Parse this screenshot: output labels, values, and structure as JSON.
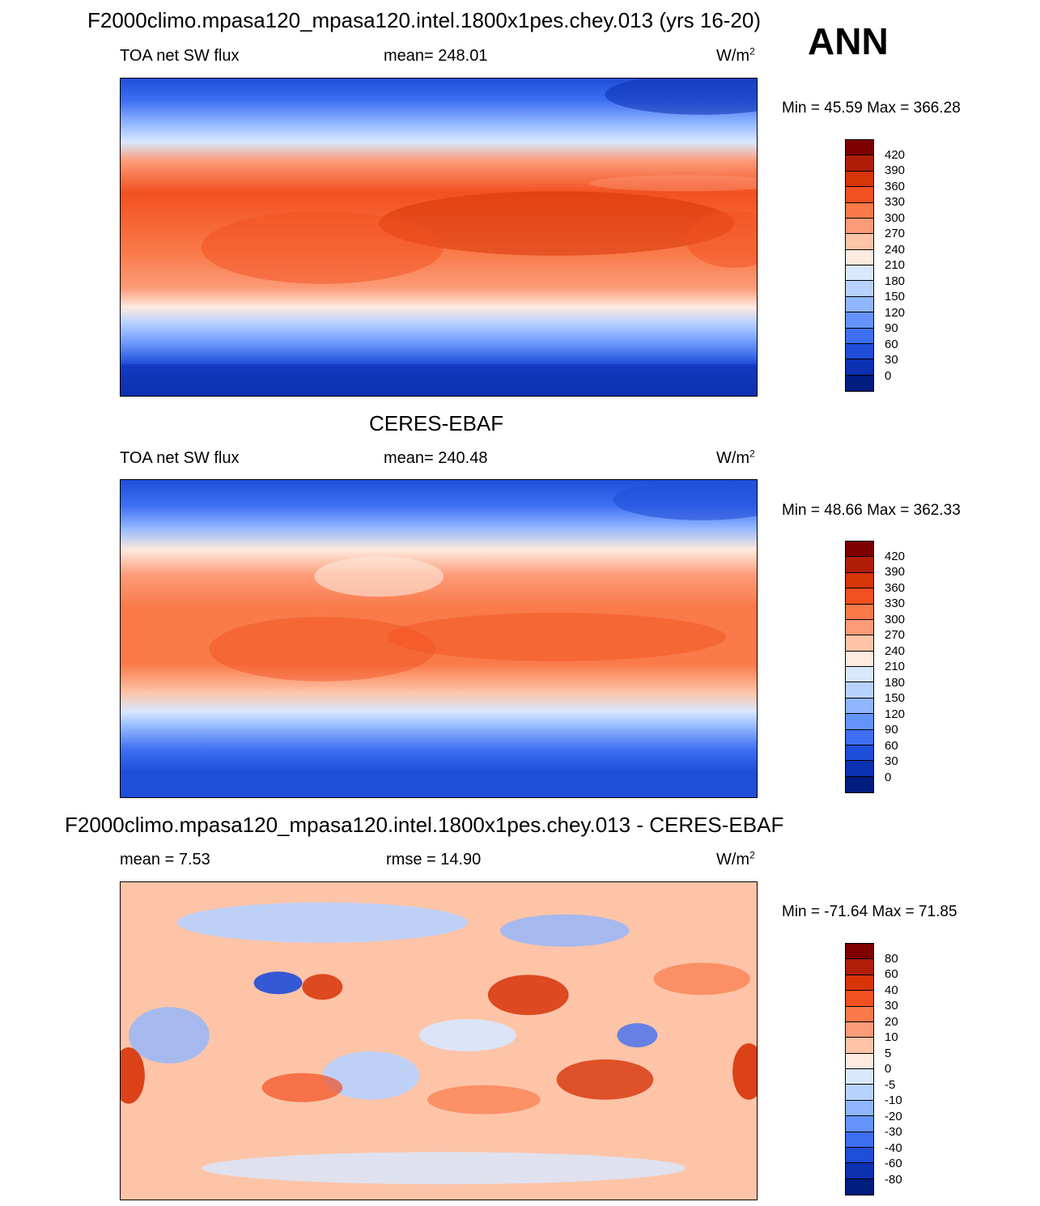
{
  "ann_label": "ANN",
  "panels": [
    {
      "title": "F2000climo.mpasa120_mpasa120.intel.1800x1pes.chey.013 (yrs 16-20)",
      "left": "TOA net SW flux",
      "center": "mean= 248.01",
      "units_base": "W/m",
      "units_exp": "2",
      "minmax": "Min =  45.59 Max = 366.28",
      "colorbar_labels": [
        "420",
        "390",
        "360",
        "330",
        "300",
        "270",
        "240",
        "210",
        "180",
        "150",
        "120",
        "90",
        "60",
        "30",
        "0"
      ]
    },
    {
      "title": "CERES-EBAF",
      "left": "TOA net SW flux",
      "center": "mean= 240.48",
      "units_base": "W/m",
      "units_exp": "2",
      "minmax": "Min =  48.66 Max = 362.33",
      "colorbar_labels": [
        "420",
        "390",
        "360",
        "330",
        "300",
        "270",
        "240",
        "210",
        "180",
        "150",
        "120",
        "90",
        "60",
        "30",
        "0"
      ]
    },
    {
      "title": "F2000climo.mpasa120_mpasa120.intel.1800x1pes.chey.013 - CERES-EBAF",
      "left": "mean =   7.53",
      "center": "rmse =  14.90",
      "units_base": "W/m",
      "units_exp": "2",
      "minmax": "Min = -71.64 Max =  71.85",
      "colorbar_labels": [
        "80",
        "60",
        "40",
        "30",
        "20",
        "10",
        "5",
        "0",
        "-5",
        "-10",
        "-20",
        "-30",
        "-40",
        "-60",
        "-80"
      ]
    }
  ],
  "colors": {
    "abs_scale": [
      "#7f0000",
      "#b01e0a",
      "#d73408",
      "#f25020",
      "#fa7a4a",
      "#fc9b78",
      "#fdc4a8",
      "#feeade",
      "#d8e8ff",
      "#b8d2ff",
      "#90b6ff",
      "#6494fb",
      "#3e6ff3",
      "#1f4ed9",
      "#0b30b0",
      "#001d80"
    ],
    "diff_scale": [
      "#7f0000",
      "#b01e0a",
      "#d73408",
      "#f25020",
      "#fa7a4a",
      "#fc9b78",
      "#fdc4a8",
      "#feeade",
      "#d8e8ff",
      "#b8d2ff",
      "#90b6ff",
      "#6494fb",
      "#3e6ff3",
      "#1f4ed9",
      "#0b30b0",
      "#001d80"
    ]
  }
}
